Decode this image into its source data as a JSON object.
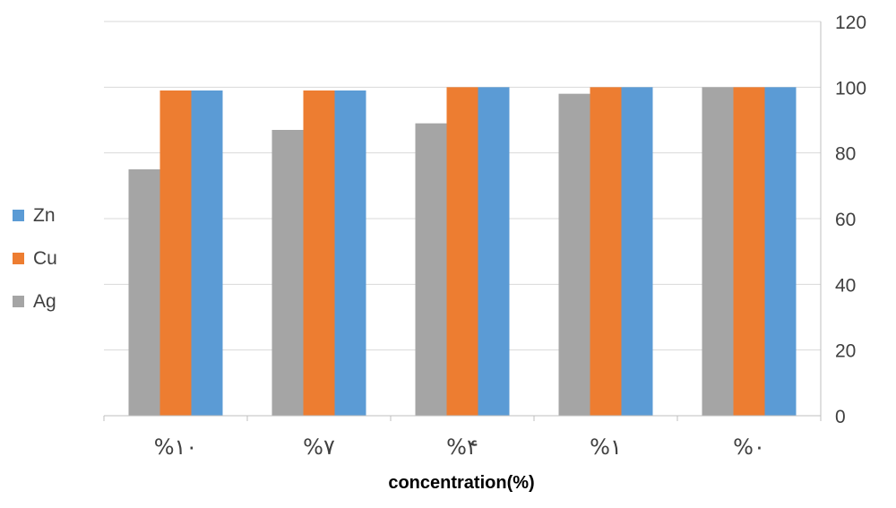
{
  "chart_data": {
    "type": "bar",
    "categories": [
      "%١٠",
      "%٧",
      "%۴",
      "%١",
      "%٠"
    ],
    "series": [
      {
        "name": "Ag",
        "color": "#a5a5a5",
        "values": [
          75,
          87,
          89,
          98,
          100
        ]
      },
      {
        "name": "Cu",
        "color": "#ed7d31",
        "values": [
          99,
          99,
          100,
          100,
          100
        ]
      },
      {
        "name": "Zn",
        "color": "#5b9bd5",
        "values": [
          99,
          99,
          100,
          100,
          100
        ]
      }
    ],
    "title": "",
    "xlabel": "concentration(%)",
    "ylabel": "",
    "ylim": [
      0,
      120
    ],
    "yticks": [
      "0",
      "20",
      "40",
      "60",
      "80",
      "100",
      "120"
    ],
    "y_axis_side": "right",
    "grid": true,
    "legend_position": "left",
    "legend_order": [
      "Zn",
      "Cu",
      "Ag"
    ]
  }
}
